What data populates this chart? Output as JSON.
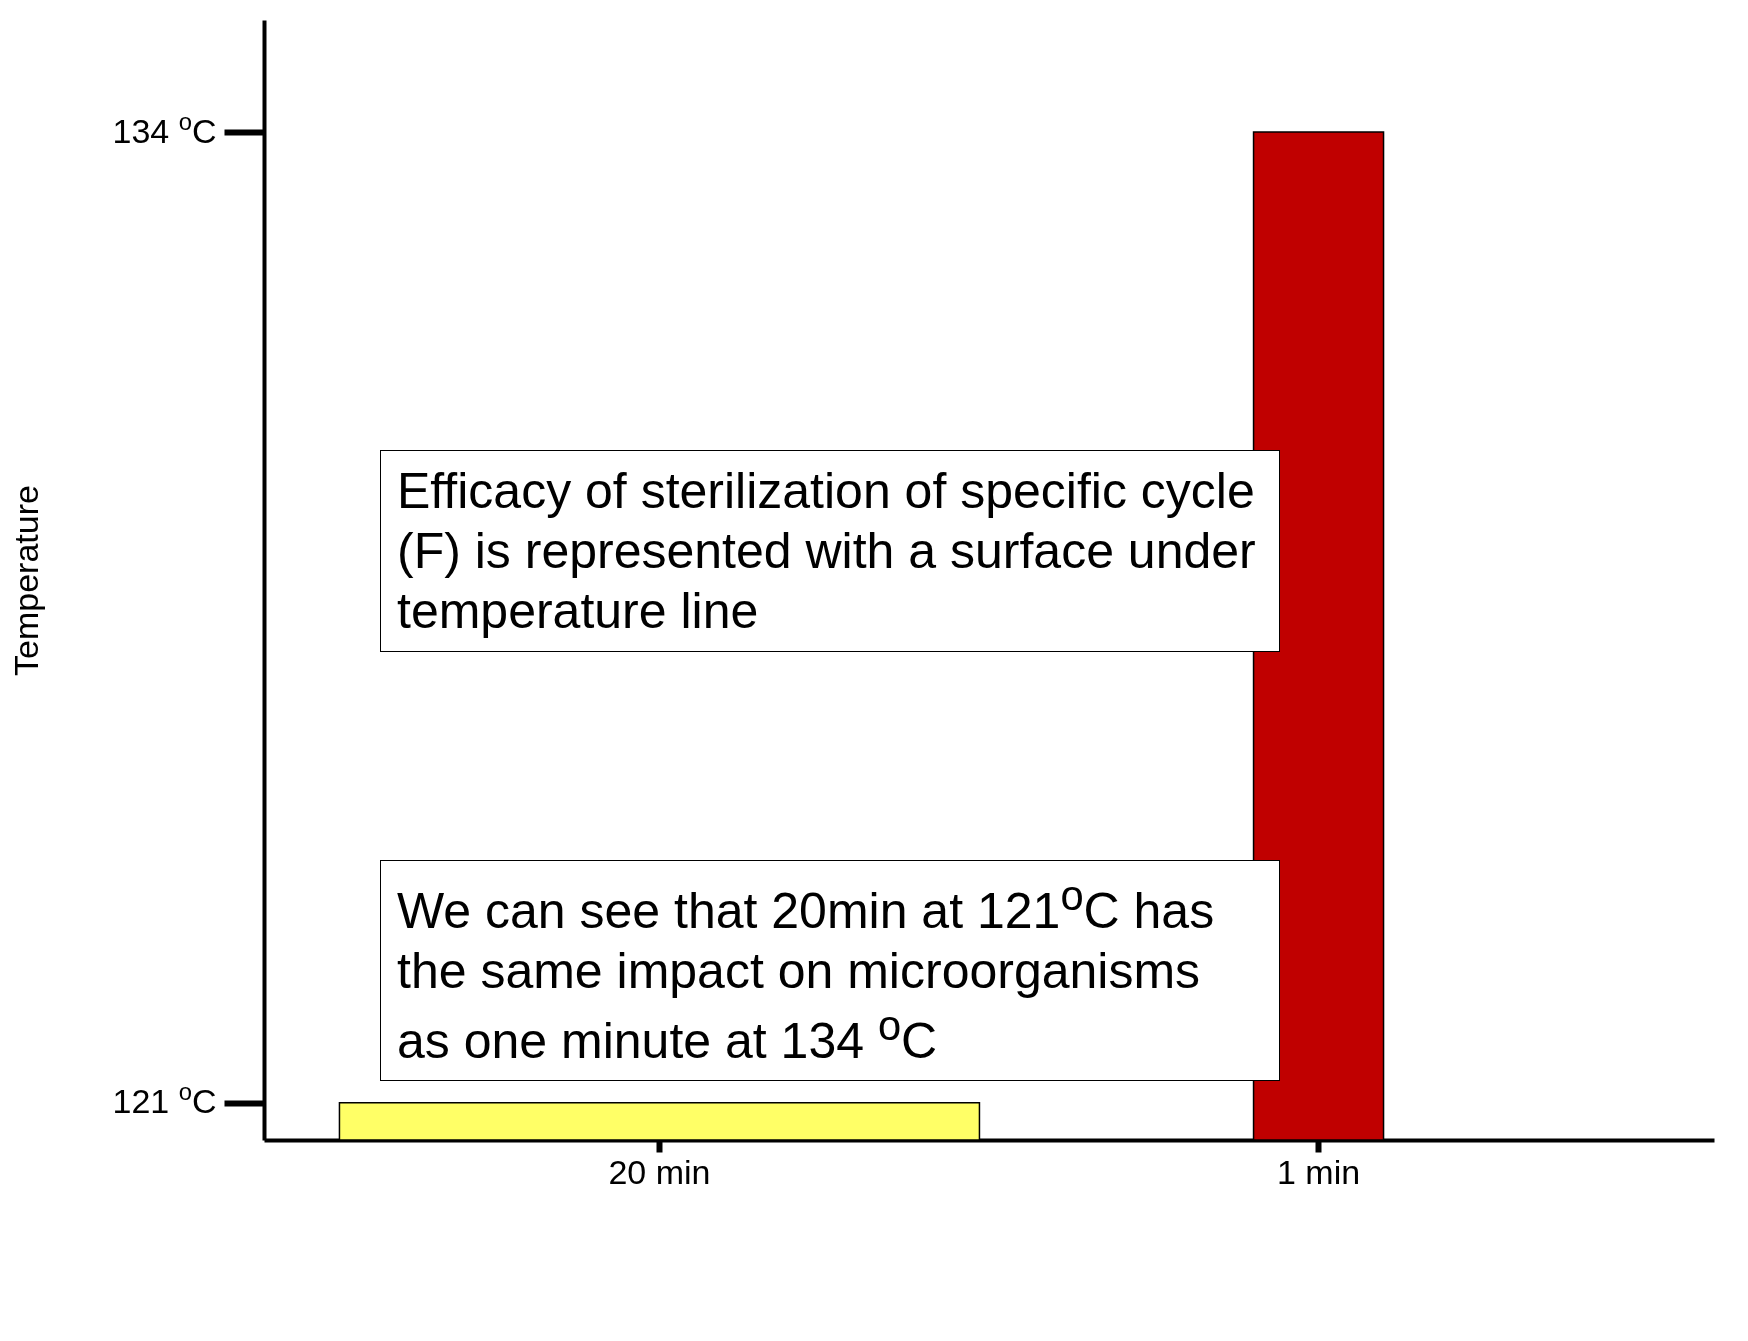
{
  "chart_data": {
    "type": "bar",
    "ylabel": "Temperature",
    "categories": [
      "20 min",
      "1 min"
    ],
    "values": [
      121,
      134
    ],
    "colors": [
      "#ffff66",
      "#c00000"
    ],
    "ylim": [
      120.5,
      135.5
    ],
    "yticks": [
      {
        "value": 121,
        "label": "121 $^{o}$C"
      },
      {
        "value": 134,
        "label": "134 $^{o}$C"
      }
    ],
    "grid": false,
    "legend": false,
    "annotations": [
      "Efficacy of sterilization of specific cycle (F) is represented with a surface under temperature line",
      "We can see that 20min at 121$^{o}$C has the same impact on microorganisms as one minute at 134 $^{o}$C"
    ]
  }
}
